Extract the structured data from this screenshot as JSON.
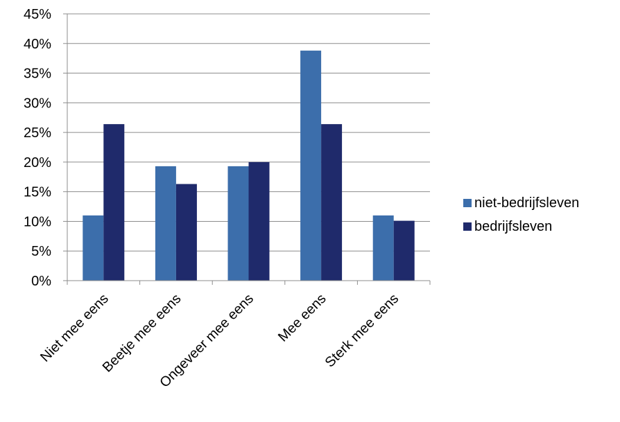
{
  "chart_data": {
    "type": "bar",
    "categories": [
      "Niet mee eens",
      "Beetje mee eens",
      "Ongeveer mee eens",
      "Mee eens",
      "Sterk mee eens"
    ],
    "series": [
      {
        "name": "niet-bedrijfsleven",
        "color": "#3C6EAB",
        "values": [
          11,
          19.3,
          19.3,
          38.8,
          11
        ]
      },
      {
        "name": "bedrijfsleven",
        "color": "#1F2A6B",
        "values": [
          26.4,
          16.3,
          20,
          26.4,
          10.1
        ]
      }
    ],
    "yticks": [
      "0%",
      "5%",
      "10%",
      "15%",
      "20%",
      "25%",
      "30%",
      "35%",
      "40%",
      "45%"
    ],
    "ylim": [
      0,
      45
    ],
    "title": "",
    "xlabel": "",
    "ylabel": "",
    "grid": true,
    "legend_position": "right"
  }
}
